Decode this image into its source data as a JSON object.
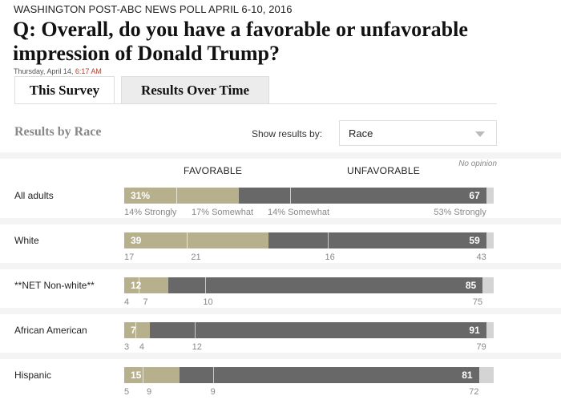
{
  "kicker": "WASHINGTON POST-ABC NEWS POLL APRIL 6-10, 2016",
  "headline": "Q: Overall, do you have a favorable or unfavorable impression of Donald Trump?",
  "dateline": {
    "date": "Thursday, April 14,",
    "time": "6:17 AM"
  },
  "tabs": [
    "This Survey",
    "Results Over Time"
  ],
  "section_title": "Results by Race",
  "filter": {
    "label": "Show results by:",
    "value": "Race"
  },
  "colors": {
    "favorable": "#b7b08c",
    "unfavorable": "#686868",
    "no_opinion": "#d4d4d4",
    "band": "#f4f4f4"
  },
  "chart_data": {
    "type": "bar",
    "stacked": true,
    "headers": {
      "favorable": "FAVORABLE",
      "unfavorable": "UNFAVORABLE",
      "no_opinion": "No opinion"
    },
    "rows": [
      {
        "label": "All adults",
        "favorable": 31,
        "favorable_display": "31%",
        "unfavorable": 67,
        "unfavorable_display": "67",
        "breakdown": {
          "fav_strongly": 14,
          "fav_somewhat": 17,
          "unfav_somewhat": 14,
          "unfav_strongly": 53
        },
        "breakdown_labels": [
          "14% Strongly",
          "17% Somewhat",
          "14% Somewhat",
          "53% Strongly"
        ]
      },
      {
        "label": "White",
        "favorable": 39,
        "favorable_display": "39",
        "unfavorable": 59,
        "unfavorable_display": "59",
        "breakdown": {
          "fav_strongly": 17,
          "fav_somewhat": 21,
          "unfav_somewhat": 16,
          "unfav_strongly": 43
        },
        "breakdown_labels": [
          "17",
          "21",
          "16",
          "43"
        ]
      },
      {
        "label": "**NET Non-white**",
        "favorable": 12,
        "favorable_display": "12",
        "unfavorable": 85,
        "unfavorable_display": "85",
        "breakdown": {
          "fav_strongly": 4,
          "fav_somewhat": 7,
          "unfav_somewhat": 10,
          "unfav_strongly": 75
        },
        "breakdown_labels": [
          "4",
          "7",
          "10",
          "75"
        ]
      },
      {
        "label": "African American",
        "favorable": 7,
        "favorable_display": "7",
        "unfavorable": 91,
        "unfavorable_display": "91",
        "breakdown": {
          "fav_strongly": 3,
          "fav_somewhat": 4,
          "unfav_somewhat": 12,
          "unfav_strongly": 79
        },
        "breakdown_labels": [
          "3",
          "4",
          "12",
          "79"
        ]
      },
      {
        "label": "Hispanic",
        "favorable": 15,
        "favorable_display": "15",
        "unfavorable": 81,
        "unfavorable_display": "81",
        "breakdown": {
          "fav_strongly": 5,
          "fav_somewhat": 9,
          "unfav_somewhat": 9,
          "unfav_strongly": 72
        },
        "breakdown_labels": [
          "5",
          "9",
          "9",
          "72"
        ]
      }
    ]
  }
}
